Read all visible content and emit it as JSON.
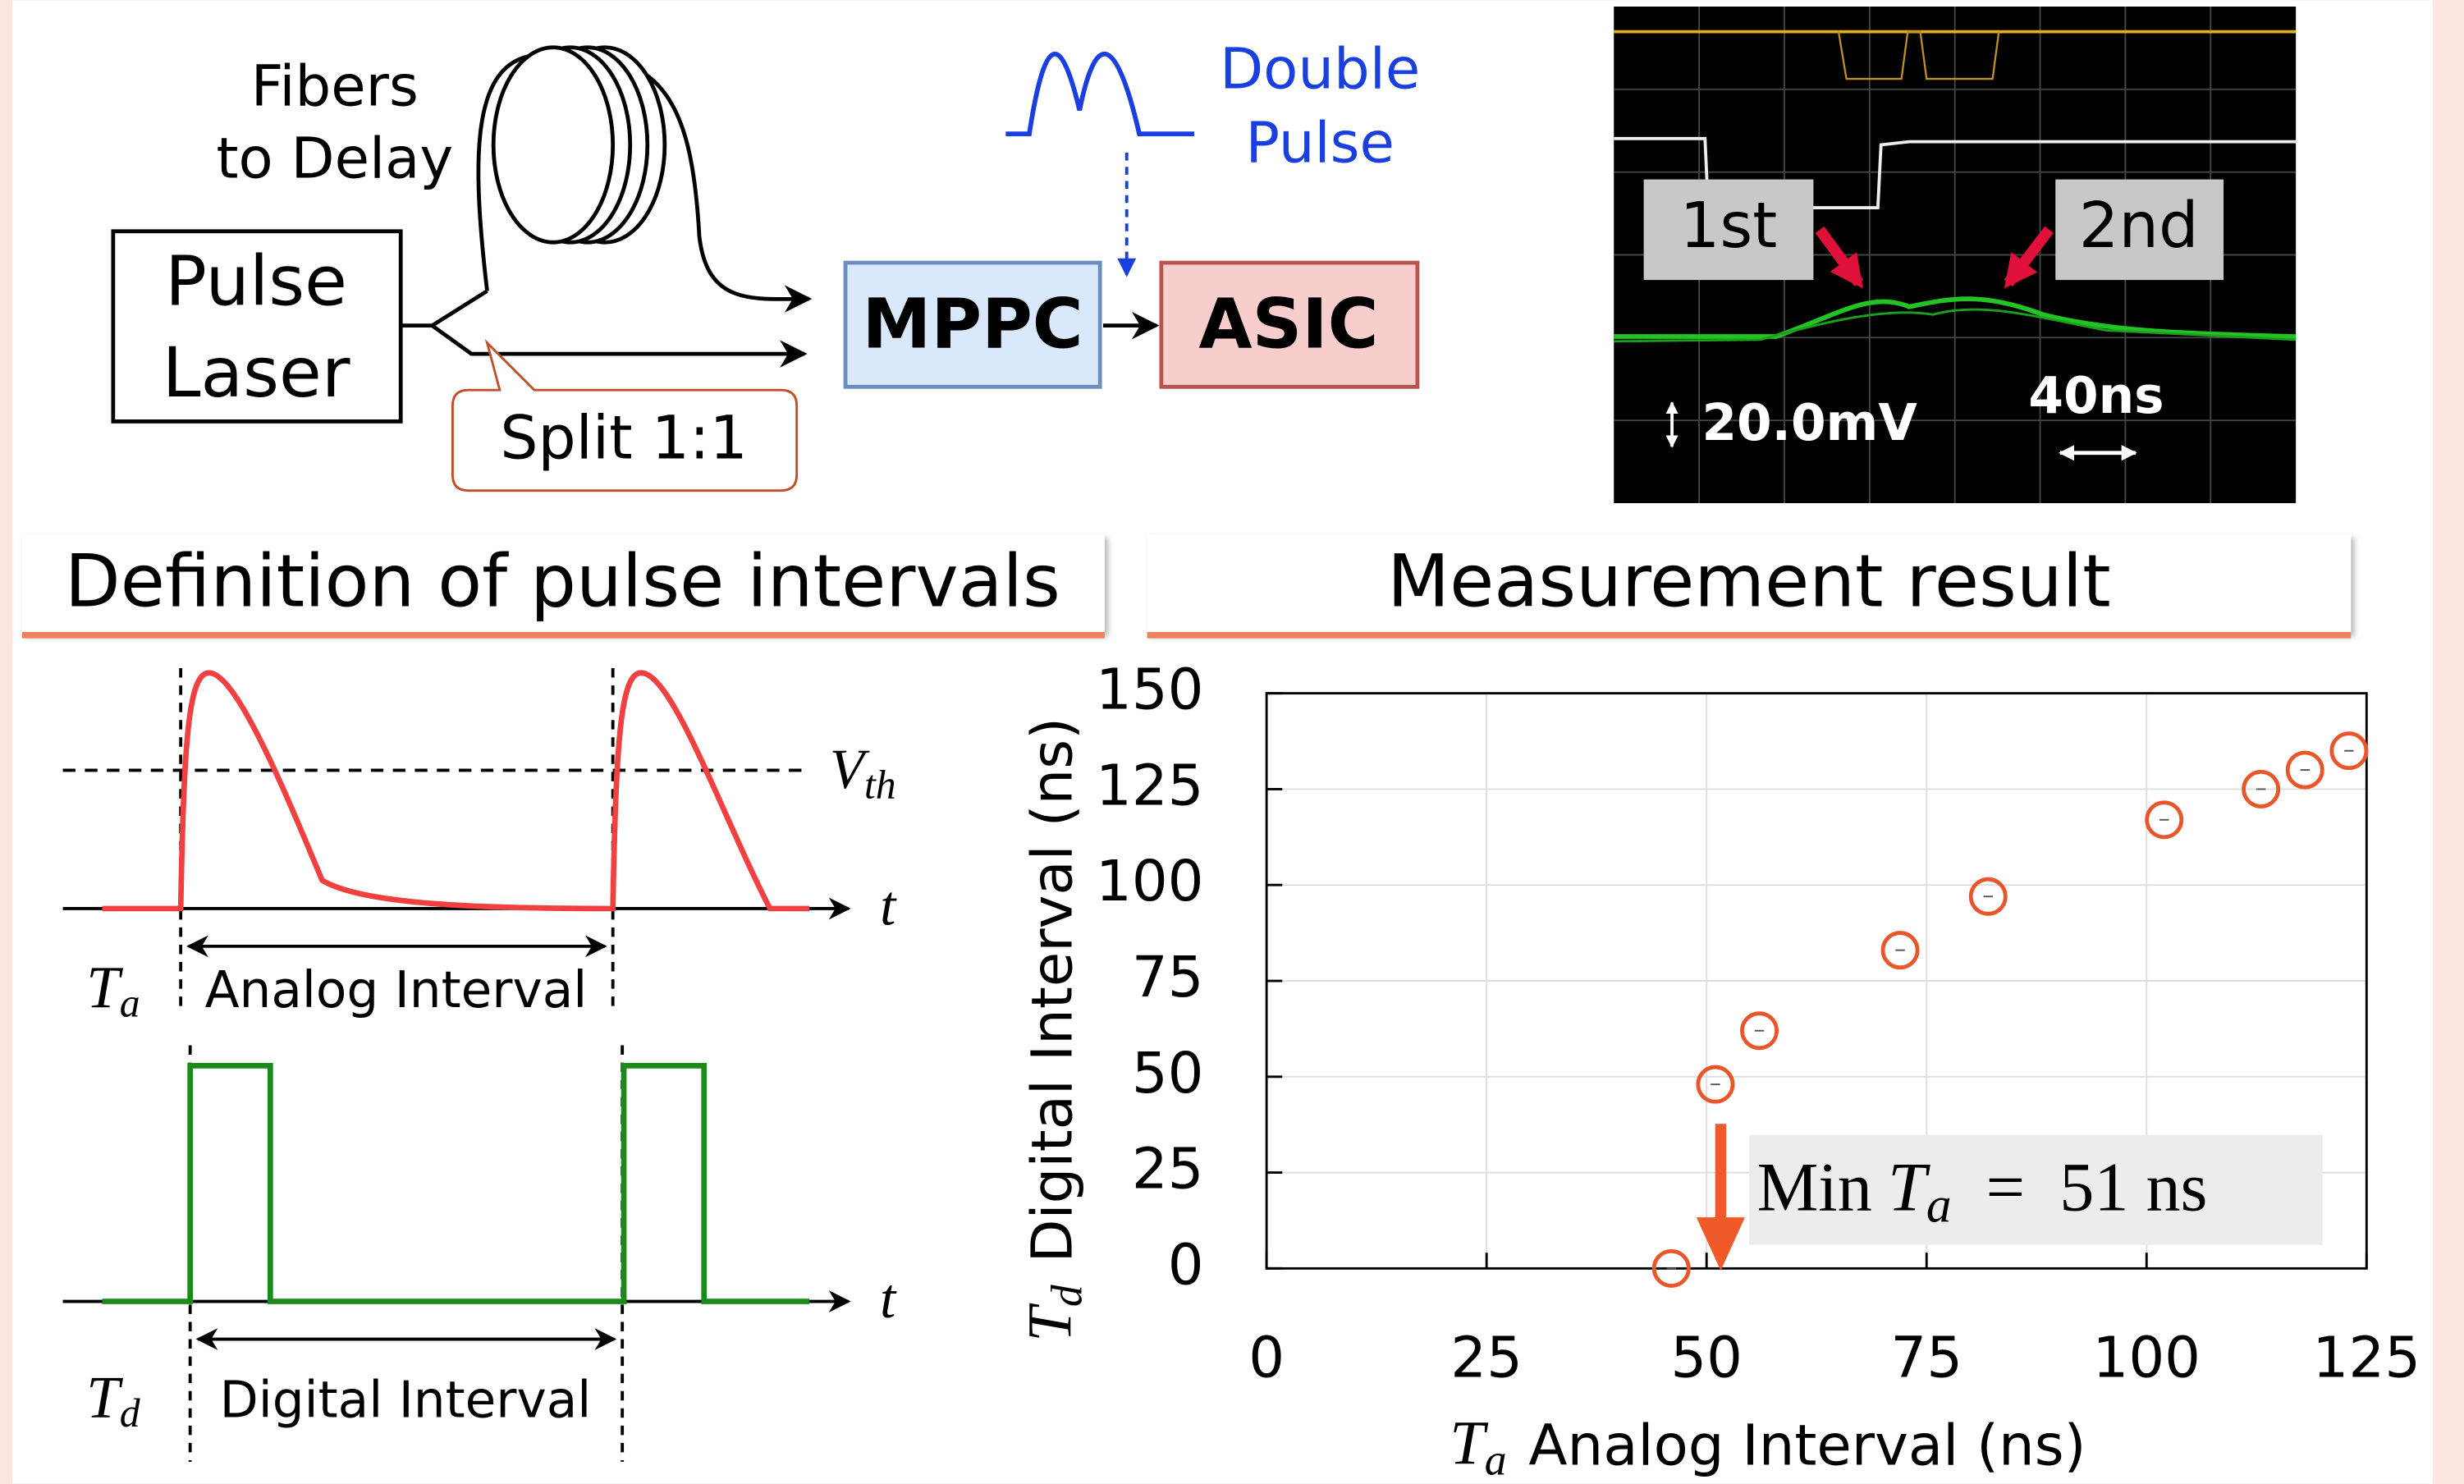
{
  "setup": {
    "fibers_label": [
      "Fibers",
      "to Delay"
    ],
    "laser_label": [
      "Pulse",
      "Laser"
    ],
    "split_label": "Split 1:1",
    "mppc_label": "MPPC",
    "asic_label": "ASIC",
    "double_pulse_label": [
      "Double",
      "Pulse"
    ]
  },
  "scope": {
    "first_label": "1st",
    "second_label": "2nd",
    "voltage_scale": "20.0mV",
    "time_scale": "40ns"
  },
  "definition": {
    "header": "Definition of pulse intervals",
    "threshold": {
      "symbol": "V",
      "subscript": "th"
    },
    "time_symbol": "t",
    "analog": {
      "symbol": "T",
      "subscript": "a",
      "label": "Analog Interval"
    },
    "digital": {
      "symbol": "T",
      "subscript": "d",
      "label": "Digital Interval"
    }
  },
  "result_header": "Measurement result",
  "chart_data": {
    "type": "scatter",
    "x": [
      46,
      51,
      56,
      72,
      82,
      102,
      113,
      118,
      123
    ],
    "series": [
      {
        "color": "#e8562a",
        "values": [
          0,
          48,
          62,
          83,
          97,
          117,
          125,
          130,
          135
        ]
      }
    ],
    "xlim": [
      0,
      125
    ],
    "ylim": [
      0,
      150
    ],
    "xticks": [
      0,
      25,
      50,
      75,
      100,
      125
    ],
    "yticks": [
      0,
      25,
      50,
      75,
      100,
      125,
      150
    ],
    "grid": true,
    "x_label": {
      "symbol": "T",
      "subscript": "a",
      "text": "Analog Interval (ns)"
    },
    "y_label": {
      "symbol": "T",
      "subscript": "d",
      "text": "Digital Interval (ns)"
    },
    "annotation": {
      "prefix": "Min",
      "symbol": "T",
      "subscript": "a",
      "operator": "=",
      "value": "51 ns"
    }
  }
}
